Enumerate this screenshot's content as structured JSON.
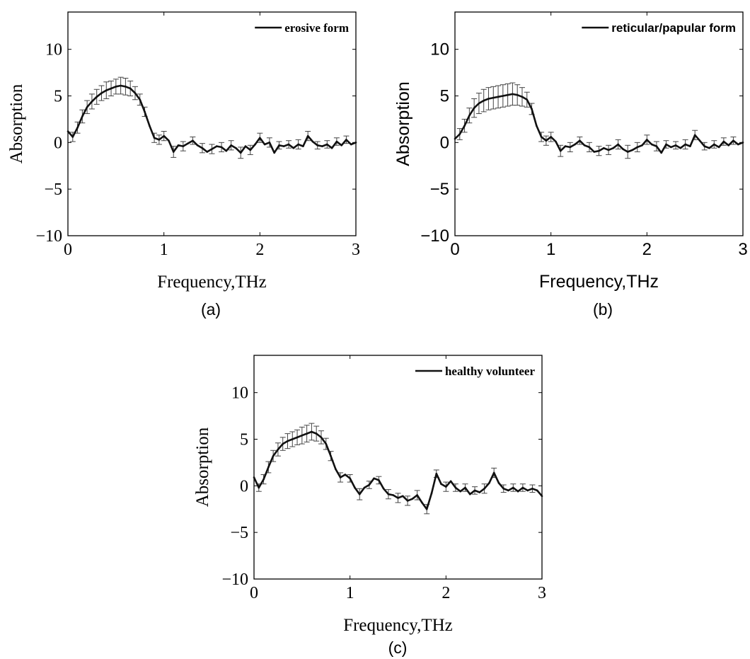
{
  "chart_data": [
    {
      "type": "line",
      "caption": "(a)",
      "xlabel": "Frequency,THz",
      "ylabel": "Absorption",
      "legend": "erosive form",
      "legend_position": "top-right",
      "xlim": [
        0,
        3
      ],
      "ylim": [
        -10,
        14
      ],
      "xticks": [
        0,
        1,
        2,
        3
      ],
      "yticks": [
        -10,
        -5,
        0,
        5,
        10
      ],
      "grid": false,
      "series": [
        {
          "name": "erosive form",
          "x": [
            0,
            0.05,
            0.1,
            0.15,
            0.2,
            0.25,
            0.3,
            0.35,
            0.4,
            0.45,
            0.5,
            0.55,
            0.6,
            0.65,
            0.7,
            0.75,
            0.8,
            0.85,
            0.9,
            0.95,
            1.0,
            1.05,
            1.1,
            1.15,
            1.2,
            1.25,
            1.3,
            1.35,
            1.4,
            1.45,
            1.5,
            1.55,
            1.6,
            1.65,
            1.7,
            1.75,
            1.8,
            1.85,
            1.9,
            1.95,
            2.0,
            2.05,
            2.1,
            2.15,
            2.2,
            2.25,
            2.3,
            2.35,
            2.4,
            2.45,
            2.5,
            2.55,
            2.6,
            2.65,
            2.7,
            2.75,
            2.8,
            2.85,
            2.9,
            2.95,
            3.0
          ],
          "y": [
            1.2,
            0.6,
            1.6,
            2.8,
            3.8,
            4.4,
            4.9,
            5.3,
            5.6,
            5.8,
            6.0,
            6.1,
            6.0,
            5.8,
            5.3,
            4.6,
            3.3,
            1.8,
            0.5,
            0.3,
            0.7,
            0.2,
            -1.0,
            -0.3,
            -0.4,
            -0.1,
            0.2,
            -0.3,
            -0.6,
            -1.0,
            -0.7,
            -0.4,
            -0.5,
            -0.9,
            -0.3,
            -0.6,
            -1.1,
            -0.4,
            -0.8,
            -0.2,
            0.5,
            -0.2,
            0.0,
            -1.1,
            -0.3,
            -0.4,
            -0.2,
            -0.6,
            -0.2,
            -0.4,
            0.7,
            0.1,
            -0.3,
            -0.4,
            -0.2,
            -0.6,
            0.1,
            -0.3,
            0.3,
            -0.2,
            0.0
          ]
        }
      ],
      "error_bars": {
        "x": [
          0.05,
          0.1,
          0.15,
          0.2,
          0.25,
          0.3,
          0.35,
          0.4,
          0.45,
          0.5,
          0.55,
          0.6,
          0.65,
          0.7,
          0.75,
          0.8,
          0.9,
          0.95,
          1.0,
          1.1,
          1.2,
          1.3,
          1.4,
          1.5,
          1.6,
          1.7,
          1.8,
          1.9,
          2.0,
          2.1,
          2.2,
          2.3,
          2.4,
          2.5,
          2.6,
          2.7,
          2.8,
          2.9
        ],
        "err": [
          0.5,
          0.6,
          0.7,
          0.7,
          0.8,
          0.8,
          0.8,
          0.9,
          0.8,
          0.8,
          0.9,
          0.9,
          0.8,
          0.7,
          0.6,
          0.5,
          0.5,
          0.5,
          0.5,
          0.6,
          0.5,
          0.4,
          0.5,
          0.5,
          0.5,
          0.5,
          0.6,
          0.5,
          0.5,
          0.5,
          0.4,
          0.4,
          0.5,
          0.5,
          0.4,
          0.4,
          0.4,
          0.4
        ]
      }
    },
    {
      "type": "line",
      "caption": "(b)",
      "xlabel": "Frequency,THz",
      "ylabel": "Absorption",
      "legend": "reticular/papular form",
      "legend_position": "top-right",
      "xlim": [
        0,
        3
      ],
      "ylim": [
        -10,
        14
      ],
      "xticks": [
        0,
        1,
        2,
        3
      ],
      "yticks": [
        -10,
        -5,
        0,
        5,
        10
      ],
      "grid": false,
      "series": [
        {
          "name": "reticular/papular form",
          "x": [
            0,
            0.05,
            0.1,
            0.15,
            0.2,
            0.25,
            0.3,
            0.35,
            0.4,
            0.45,
            0.5,
            0.55,
            0.6,
            0.65,
            0.7,
            0.75,
            0.8,
            0.85,
            0.9,
            0.95,
            1.0,
            1.05,
            1.1,
            1.15,
            1.2,
            1.25,
            1.3,
            1.35,
            1.4,
            1.45,
            1.5,
            1.55,
            1.6,
            1.65,
            1.7,
            1.75,
            1.8,
            1.85,
            1.9,
            1.95,
            2.0,
            2.05,
            2.1,
            2.15,
            2.2,
            2.25,
            2.3,
            2.35,
            2.4,
            2.45,
            2.5,
            2.55,
            2.6,
            2.65,
            2.7,
            2.75,
            2.8,
            2.85,
            2.9,
            2.95,
            3.0
          ],
          "y": [
            0.4,
            0.9,
            1.8,
            2.9,
            3.7,
            4.2,
            4.5,
            4.7,
            4.8,
            4.9,
            5.0,
            5.1,
            5.2,
            5.1,
            4.9,
            4.6,
            3.6,
            1.8,
            0.6,
            0.2,
            0.6,
            0.1,
            -0.9,
            -0.4,
            -0.5,
            -0.2,
            0.2,
            -0.3,
            -0.5,
            -1.0,
            -0.9,
            -0.6,
            -0.8,
            -0.6,
            -0.2,
            -0.7,
            -1.0,
            -0.8,
            -0.5,
            -0.3,
            0.3,
            -0.2,
            -0.4,
            -1.1,
            -0.2,
            -0.5,
            -0.3,
            -0.6,
            -0.2,
            -0.4,
            0.8,
            0.2,
            -0.4,
            -0.6,
            -0.2,
            -0.5,
            0.1,
            -0.3,
            0.2,
            -0.2,
            0.0
          ]
        }
      ],
      "error_bars": {
        "x": [
          0.05,
          0.1,
          0.15,
          0.2,
          0.25,
          0.3,
          0.35,
          0.4,
          0.45,
          0.5,
          0.55,
          0.6,
          0.65,
          0.7,
          0.75,
          0.8,
          0.9,
          0.95,
          1.0,
          1.1,
          1.2,
          1.3,
          1.4,
          1.5,
          1.6,
          1.7,
          1.8,
          1.9,
          2.0,
          2.1,
          2.2,
          2.3,
          2.4,
          2.5,
          2.6,
          2.7,
          2.8,
          2.9
        ],
        "err": [
          0.6,
          0.7,
          0.8,
          1.0,
          1.1,
          1.2,
          1.2,
          1.2,
          1.2,
          1.2,
          1.2,
          1.2,
          1.1,
          1.0,
          0.8,
          0.6,
          0.5,
          0.5,
          0.5,
          0.6,
          0.5,
          0.4,
          0.5,
          0.5,
          0.5,
          0.5,
          0.7,
          0.5,
          0.5,
          0.5,
          0.4,
          0.4,
          0.5,
          0.5,
          0.4,
          0.4,
          0.4,
          0.4
        ]
      }
    },
    {
      "type": "line",
      "caption": "(c)",
      "xlabel": "Frequency,THz",
      "ylabel": "Absorption",
      "legend": "healthy volunteer",
      "legend_position": "top-right",
      "xlim": [
        0,
        3
      ],
      "ylim": [
        -10,
        14
      ],
      "xticks": [
        0,
        1,
        2,
        3
      ],
      "yticks": [
        -10,
        -5,
        0,
        5,
        10
      ],
      "grid": false,
      "series": [
        {
          "name": "healthy volunteer",
          "x": [
            0,
            0.05,
            0.1,
            0.15,
            0.2,
            0.25,
            0.3,
            0.35,
            0.4,
            0.45,
            0.5,
            0.55,
            0.6,
            0.65,
            0.7,
            0.75,
            0.8,
            0.85,
            0.9,
            0.95,
            1.0,
            1.05,
            1.1,
            1.15,
            1.2,
            1.25,
            1.3,
            1.35,
            1.4,
            1.45,
            1.5,
            1.55,
            1.6,
            1.65,
            1.7,
            1.75,
            1.8,
            1.85,
            1.9,
            1.95,
            2.0,
            2.05,
            2.1,
            2.15,
            2.2,
            2.25,
            2.3,
            2.35,
            2.4,
            2.45,
            2.5,
            2.55,
            2.6,
            2.65,
            2.7,
            2.75,
            2.8,
            2.85,
            2.9,
            2.95,
            3.0
          ],
          "y": [
            0.9,
            -0.2,
            0.7,
            2.0,
            3.2,
            3.9,
            4.5,
            4.8,
            5.0,
            5.2,
            5.4,
            5.6,
            5.8,
            5.6,
            5.2,
            4.5,
            3.2,
            1.8,
            0.9,
            1.2,
            0.8,
            -0.2,
            -0.9,
            -0.2,
            0.1,
            0.8,
            0.6,
            -0.3,
            -0.9,
            -1.0,
            -1.3,
            -1.1,
            -1.6,
            -1.4,
            -1.0,
            -1.8,
            -2.5,
            -0.8,
            1.3,
            0.2,
            -0.1,
            0.5,
            -0.2,
            -0.6,
            -0.2,
            -0.9,
            -0.5,
            -0.7,
            -0.3,
            0.3,
            1.4,
            0.3,
            -0.3,
            -0.5,
            -0.2,
            -0.6,
            -0.2,
            -0.5,
            -0.3,
            -0.5,
            -1.1
          ]
        }
      ],
      "error_bars": {
        "x": [
          0.05,
          0.1,
          0.15,
          0.2,
          0.25,
          0.3,
          0.35,
          0.4,
          0.45,
          0.5,
          0.55,
          0.6,
          0.65,
          0.7,
          0.75,
          0.8,
          0.9,
          1.0,
          1.1,
          1.2,
          1.3,
          1.4,
          1.5,
          1.6,
          1.7,
          1.8,
          1.9,
          2.0,
          2.1,
          2.2,
          2.3,
          2.4,
          2.5,
          2.6,
          2.7,
          2.8,
          2.9
        ],
        "err": [
          0.4,
          0.5,
          0.6,
          0.6,
          0.7,
          0.7,
          0.8,
          0.8,
          0.8,
          0.9,
          0.9,
          0.9,
          0.8,
          0.7,
          0.6,
          0.5,
          0.5,
          0.4,
          0.6,
          0.4,
          0.4,
          0.5,
          0.5,
          0.5,
          0.5,
          0.5,
          0.4,
          0.5,
          0.4,
          0.4,
          0.4,
          0.5,
          0.5,
          0.4,
          0.4,
          0.4,
          0.4
        ]
      }
    }
  ]
}
